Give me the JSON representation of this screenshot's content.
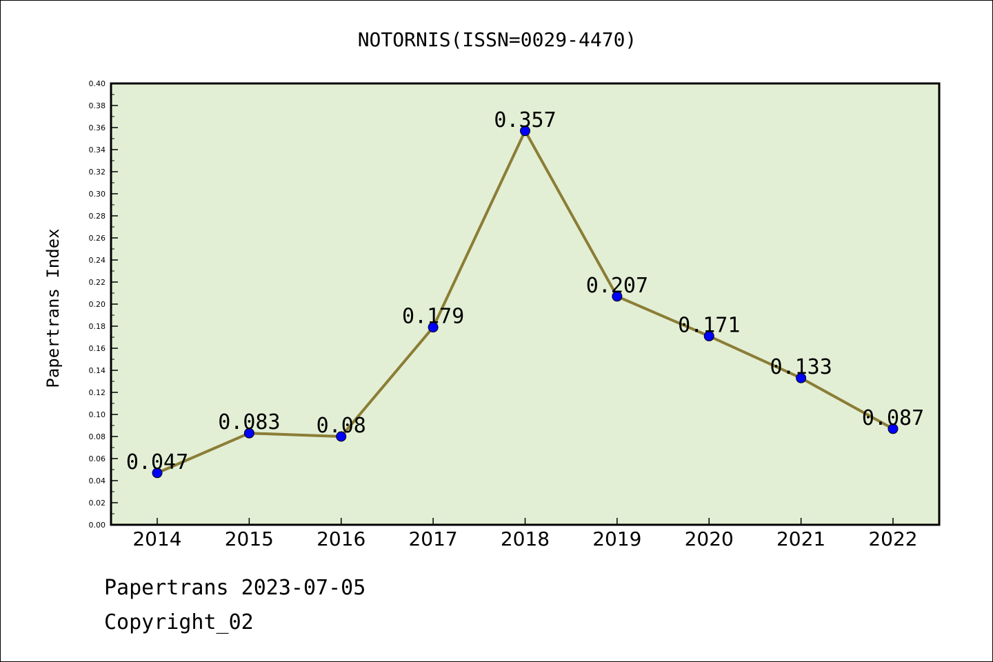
{
  "chart_data": {
    "type": "line",
    "title": "NOTORNIS(ISSN=0029-4470)",
    "xlabel": "",
    "ylabel": "Papertrans Index",
    "categories": [
      "2014",
      "2015",
      "2016",
      "2017",
      "2018",
      "2019",
      "2020",
      "2021",
      "2022"
    ],
    "values": [
      0.047,
      0.083,
      0.08,
      0.179,
      0.357,
      0.207,
      0.171,
      0.133,
      0.087
    ],
    "data_labels": [
      "0.047",
      "0.083",
      "0.08",
      "0.179",
      "0.357",
      "0.207",
      "0.171",
      "0.133",
      "0.087"
    ],
    "ylim": [
      0,
      0.4
    ],
    "y_ticks": [
      "0.00",
      "0.02",
      "0.04",
      "0.06",
      "0.08",
      "0.10",
      "0.12",
      "0.14",
      "0.16",
      "0.18",
      "0.20",
      "0.22",
      "0.24",
      "0.26",
      "0.28",
      "0.30",
      "0.32",
      "0.34",
      "0.36",
      "0.38",
      "0.40"
    ],
    "grid": false,
    "colors": {
      "plot_background": "#e2efd5",
      "line": "#8b7d35",
      "marker": "#0000ff"
    }
  },
  "footer": {
    "date_text": "Papertrans 2023-07-05",
    "copyright_text": "Copyright_02"
  }
}
